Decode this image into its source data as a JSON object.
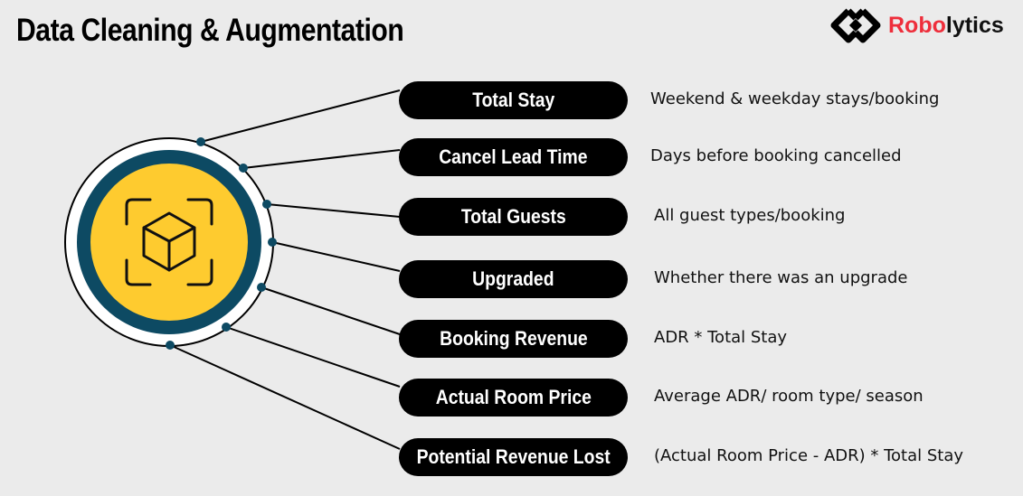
{
  "title": "Data Cleaning & Augmentation",
  "logo": {
    "text_red": "Robo",
    "text_black": "lytics",
    "brand_color": "#ee2e3b"
  },
  "colors": {
    "ring": "#0d4a63",
    "core": "#fecb2f",
    "dot": "#0d4a63"
  },
  "center_icon": "cube-scan-icon",
  "features": [
    {
      "label": "Total Stay",
      "description": "Weekend & weekday stays/booking"
    },
    {
      "label": "Cancel Lead Time",
      "description": "Days before booking cancelled"
    },
    {
      "label": "Total Guests",
      "description": "All guest types/booking"
    },
    {
      "label": "Upgraded",
      "description": "Whether there was an upgrade"
    },
    {
      "label": "Booking Revenue",
      "description": "ADR * Total Stay"
    },
    {
      "label": "Actual Room Price",
      "description": "Average ADR/ room type/ season"
    },
    {
      "label": "Potential Revenue Lost",
      "description": "(Actual Room Price - ADR) * Total Stay"
    }
  ]
}
